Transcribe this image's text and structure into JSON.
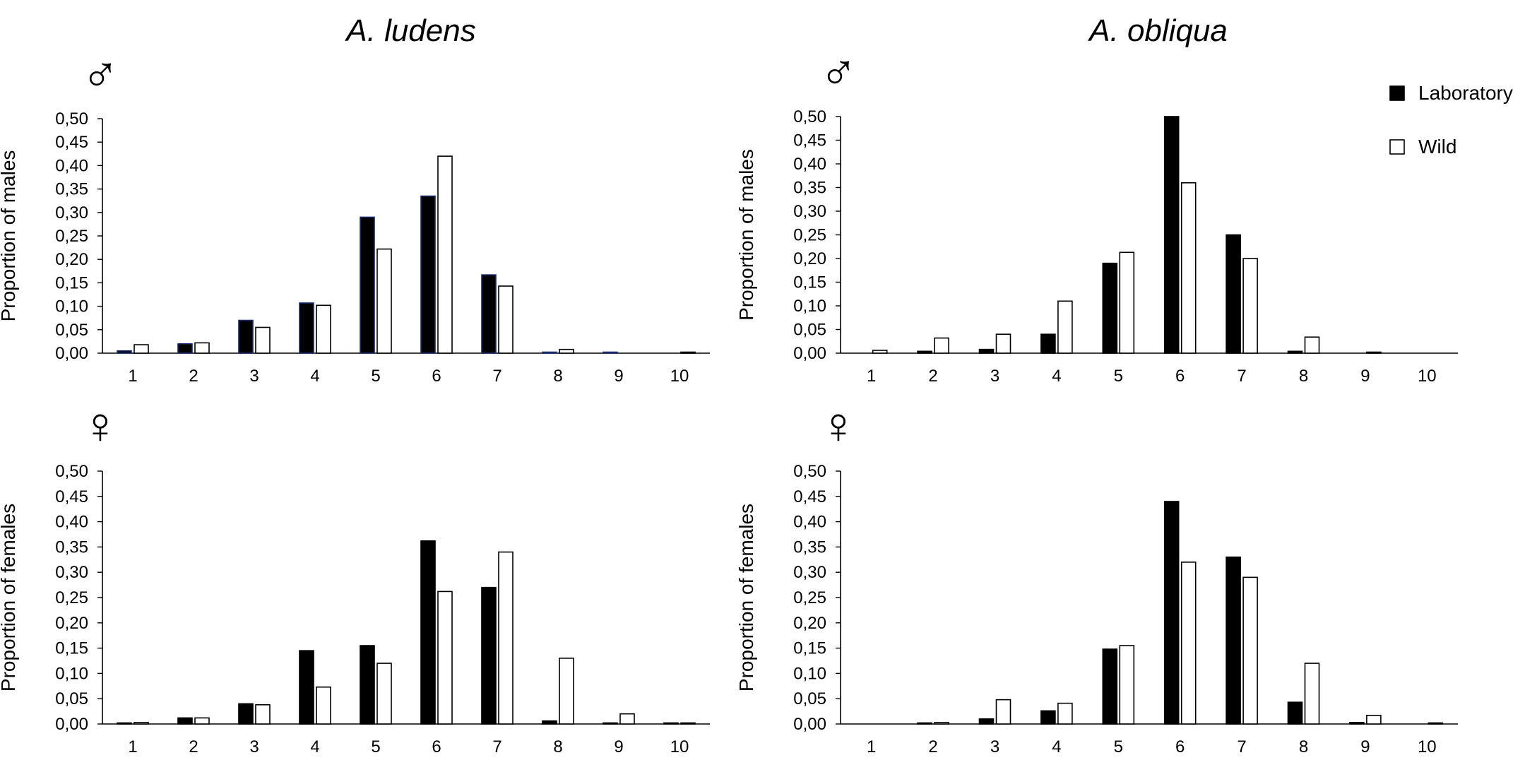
{
  "titles": {
    "left": "A. ludens",
    "right": "A. obliqua"
  },
  "symbols": {
    "male": "♂",
    "female": "♀"
  },
  "legend": {
    "laboratory": "Laboratory",
    "wild": "Wild",
    "laboratory_color": "#000000",
    "wild_color": "#ffffff"
  },
  "chart_data": [
    {
      "type": "bar",
      "title": "A. ludens",
      "sex_symbol": "♂",
      "ylabel": "Proportion of males",
      "xlabel": "",
      "ylim": [
        0,
        0.5
      ],
      "yticks": [
        "0,00",
        "0,05",
        "0,10",
        "0,15",
        "0,20",
        "0,25",
        "0,30",
        "0,35",
        "0,40",
        "0,45",
        "0,50"
      ],
      "categories": [
        "1",
        "2",
        "3",
        "4",
        "5",
        "6",
        "7",
        "8",
        "9",
        "10"
      ],
      "lab_edge": "#1a2a6a",
      "series": [
        {
          "name": "Laboratory",
          "values": [
            0.005,
            0.02,
            0.07,
            0.107,
            0.29,
            0.335,
            0.167,
            0.002,
            0.001,
            0.0
          ]
        },
        {
          "name": "Wild",
          "values": [
            0.018,
            0.022,
            0.055,
            0.102,
            0.222,
            0.42,
            0.143,
            0.008,
            0.0,
            0.001
          ]
        }
      ]
    },
    {
      "type": "bar",
      "title": "A. obliqua",
      "sex_symbol": "♂",
      "ylabel": "Proportion of males",
      "xlabel": "",
      "ylim": [
        0,
        0.5
      ],
      "yticks": [
        "0,00",
        "0,05",
        "0,10",
        "0,15",
        "0,20",
        "0,25",
        "0,30",
        "0,35",
        "0,40",
        "0,45",
        "0,50"
      ],
      "categories": [
        "1",
        "2",
        "3",
        "4",
        "5",
        "6",
        "7",
        "8",
        "9",
        "10"
      ],
      "lab_edge": "#000000",
      "series": [
        {
          "name": "Laboratory",
          "values": [
            0.0,
            0.004,
            0.008,
            0.04,
            0.19,
            0.5,
            0.25,
            0.004,
            0.0,
            0.0
          ]
        },
        {
          "name": "Wild",
          "values": [
            0.006,
            0.032,
            0.04,
            0.11,
            0.213,
            0.36,
            0.2,
            0.034,
            0.002,
            0.0
          ]
        }
      ]
    },
    {
      "type": "bar",
      "title": "A. ludens",
      "sex_symbol": "♀",
      "ylabel": "Proportion of females",
      "xlabel": "",
      "ylim": [
        0,
        0.5
      ],
      "yticks": [
        "0,00",
        "0,05",
        "0,10",
        "0,15",
        "0,20",
        "0,25",
        "0,30",
        "0,35",
        "0,40",
        "0,45",
        "0,50"
      ],
      "categories": [
        "1",
        "2",
        "3",
        "4",
        "5",
        "6",
        "7",
        "8",
        "9",
        "10"
      ],
      "lab_edge": "#000000",
      "series": [
        {
          "name": "Laboratory",
          "values": [
            0.001,
            0.012,
            0.04,
            0.145,
            0.155,
            0.362,
            0.27,
            0.006,
            0.001,
            0.001
          ]
        },
        {
          "name": "Wild",
          "values": [
            0.003,
            0.012,
            0.038,
            0.073,
            0.12,
            0.262,
            0.34,
            0.13,
            0.02,
            0.001
          ]
        }
      ]
    },
    {
      "type": "bar",
      "title": "A. obliqua",
      "sex_symbol": "♀",
      "ylabel": "Proportion of females",
      "xlabel": "",
      "ylim": [
        0,
        0.5
      ],
      "yticks": [
        "0,00",
        "0,05",
        "0,10",
        "0,15",
        "0,20",
        "0,25",
        "0,30",
        "0,35",
        "0,40",
        "0,45",
        "0,50"
      ],
      "categories": [
        "1",
        "2",
        "3",
        "4",
        "5",
        "6",
        "7",
        "8",
        "9",
        "10"
      ],
      "lab_edge": "#000000",
      "series": [
        {
          "name": "Laboratory",
          "values": [
            0.0,
            0.002,
            0.01,
            0.026,
            0.148,
            0.44,
            0.33,
            0.043,
            0.003,
            0.0
          ]
        },
        {
          "name": "Wild",
          "values": [
            0.0,
            0.003,
            0.048,
            0.041,
            0.155,
            0.32,
            0.29,
            0.12,
            0.017,
            0.001
          ]
        }
      ]
    }
  ]
}
